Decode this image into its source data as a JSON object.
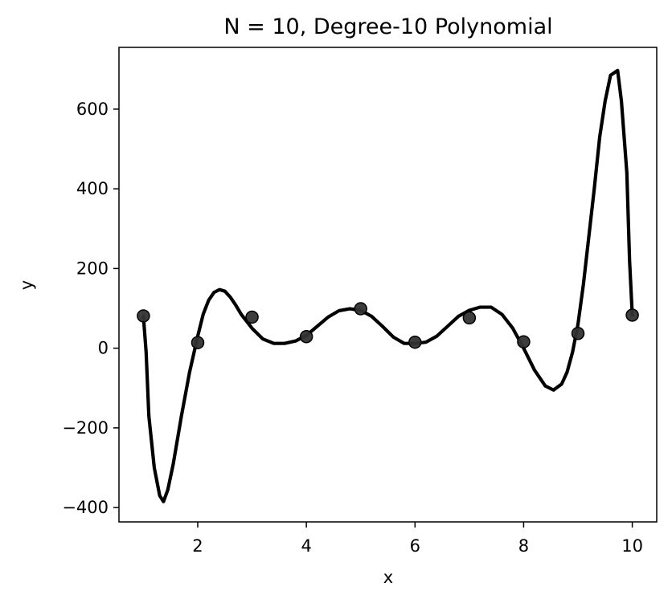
{
  "chart_data": {
    "type": "scatter",
    "title": "N = 10, Degree-10 Polynomial",
    "xlabel": "x",
    "ylabel": "y",
    "xlim": [
      0.55,
      10.45
    ],
    "ylim": [
      -436,
      755
    ],
    "x_ticks": [
      2,
      4,
      6,
      8,
      10
    ],
    "x_tick_labels": [
      "2",
      "4",
      "6",
      "8",
      "10"
    ],
    "y_ticks": [
      -400,
      -200,
      0,
      200,
      400,
      600
    ],
    "y_tick_labels": [
      "−400",
      "−200",
      "0",
      "200",
      "400",
      "600"
    ],
    "grid": false,
    "legend": "none",
    "series": [
      {
        "kind": "scatter",
        "x": [
          1,
          2,
          3,
          4,
          5,
          6,
          7,
          8,
          9,
          10
        ],
        "y": [
          81,
          14,
          78,
          29,
          99,
          15,
          76,
          16,
          37,
          83
        ],
        "color": "#333333"
      },
      {
        "kind": "line",
        "color": "#000000",
        "x": [
          1.0,
          1.05,
          1.1,
          1.2,
          1.3,
          1.37,
          1.45,
          1.55,
          1.7,
          1.85,
          2.0,
          2.1,
          2.2,
          2.3,
          2.4,
          2.5,
          2.6,
          2.7,
          2.8,
          3.0,
          3.2,
          3.4,
          3.6,
          3.8,
          4.0,
          4.2,
          4.4,
          4.6,
          4.8,
          5.0,
          5.2,
          5.4,
          5.6,
          5.8,
          6.0,
          6.2,
          6.4,
          6.6,
          6.8,
          7.0,
          7.2,
          7.4,
          7.6,
          7.8,
          8.0,
          8.2,
          8.4,
          8.55,
          8.7,
          8.8,
          8.9,
          9.0,
          9.1,
          9.2,
          9.3,
          9.4,
          9.5,
          9.6,
          9.73,
          9.8,
          9.9,
          9.95,
          10.0
        ],
        "y": [
          80,
          -10,
          -170,
          -300,
          -370,
          -385,
          -355,
          -290,
          -170,
          -60,
          30,
          85,
          120,
          140,
          147,
          143,
          128,
          108,
          85,
          50,
          23,
          12,
          12,
          18,
          32,
          55,
          78,
          94,
          99,
          95,
          80,
          55,
          28,
          12,
          12,
          15,
          30,
          55,
          80,
          95,
          103,
          103,
          85,
          50,
          0,
          -55,
          -95,
          -105,
          -90,
          -60,
          -10,
          60,
          160,
          280,
          400,
          530,
          620,
          685,
          697,
          620,
          440,
          220,
          83
        ]
      }
    ]
  }
}
